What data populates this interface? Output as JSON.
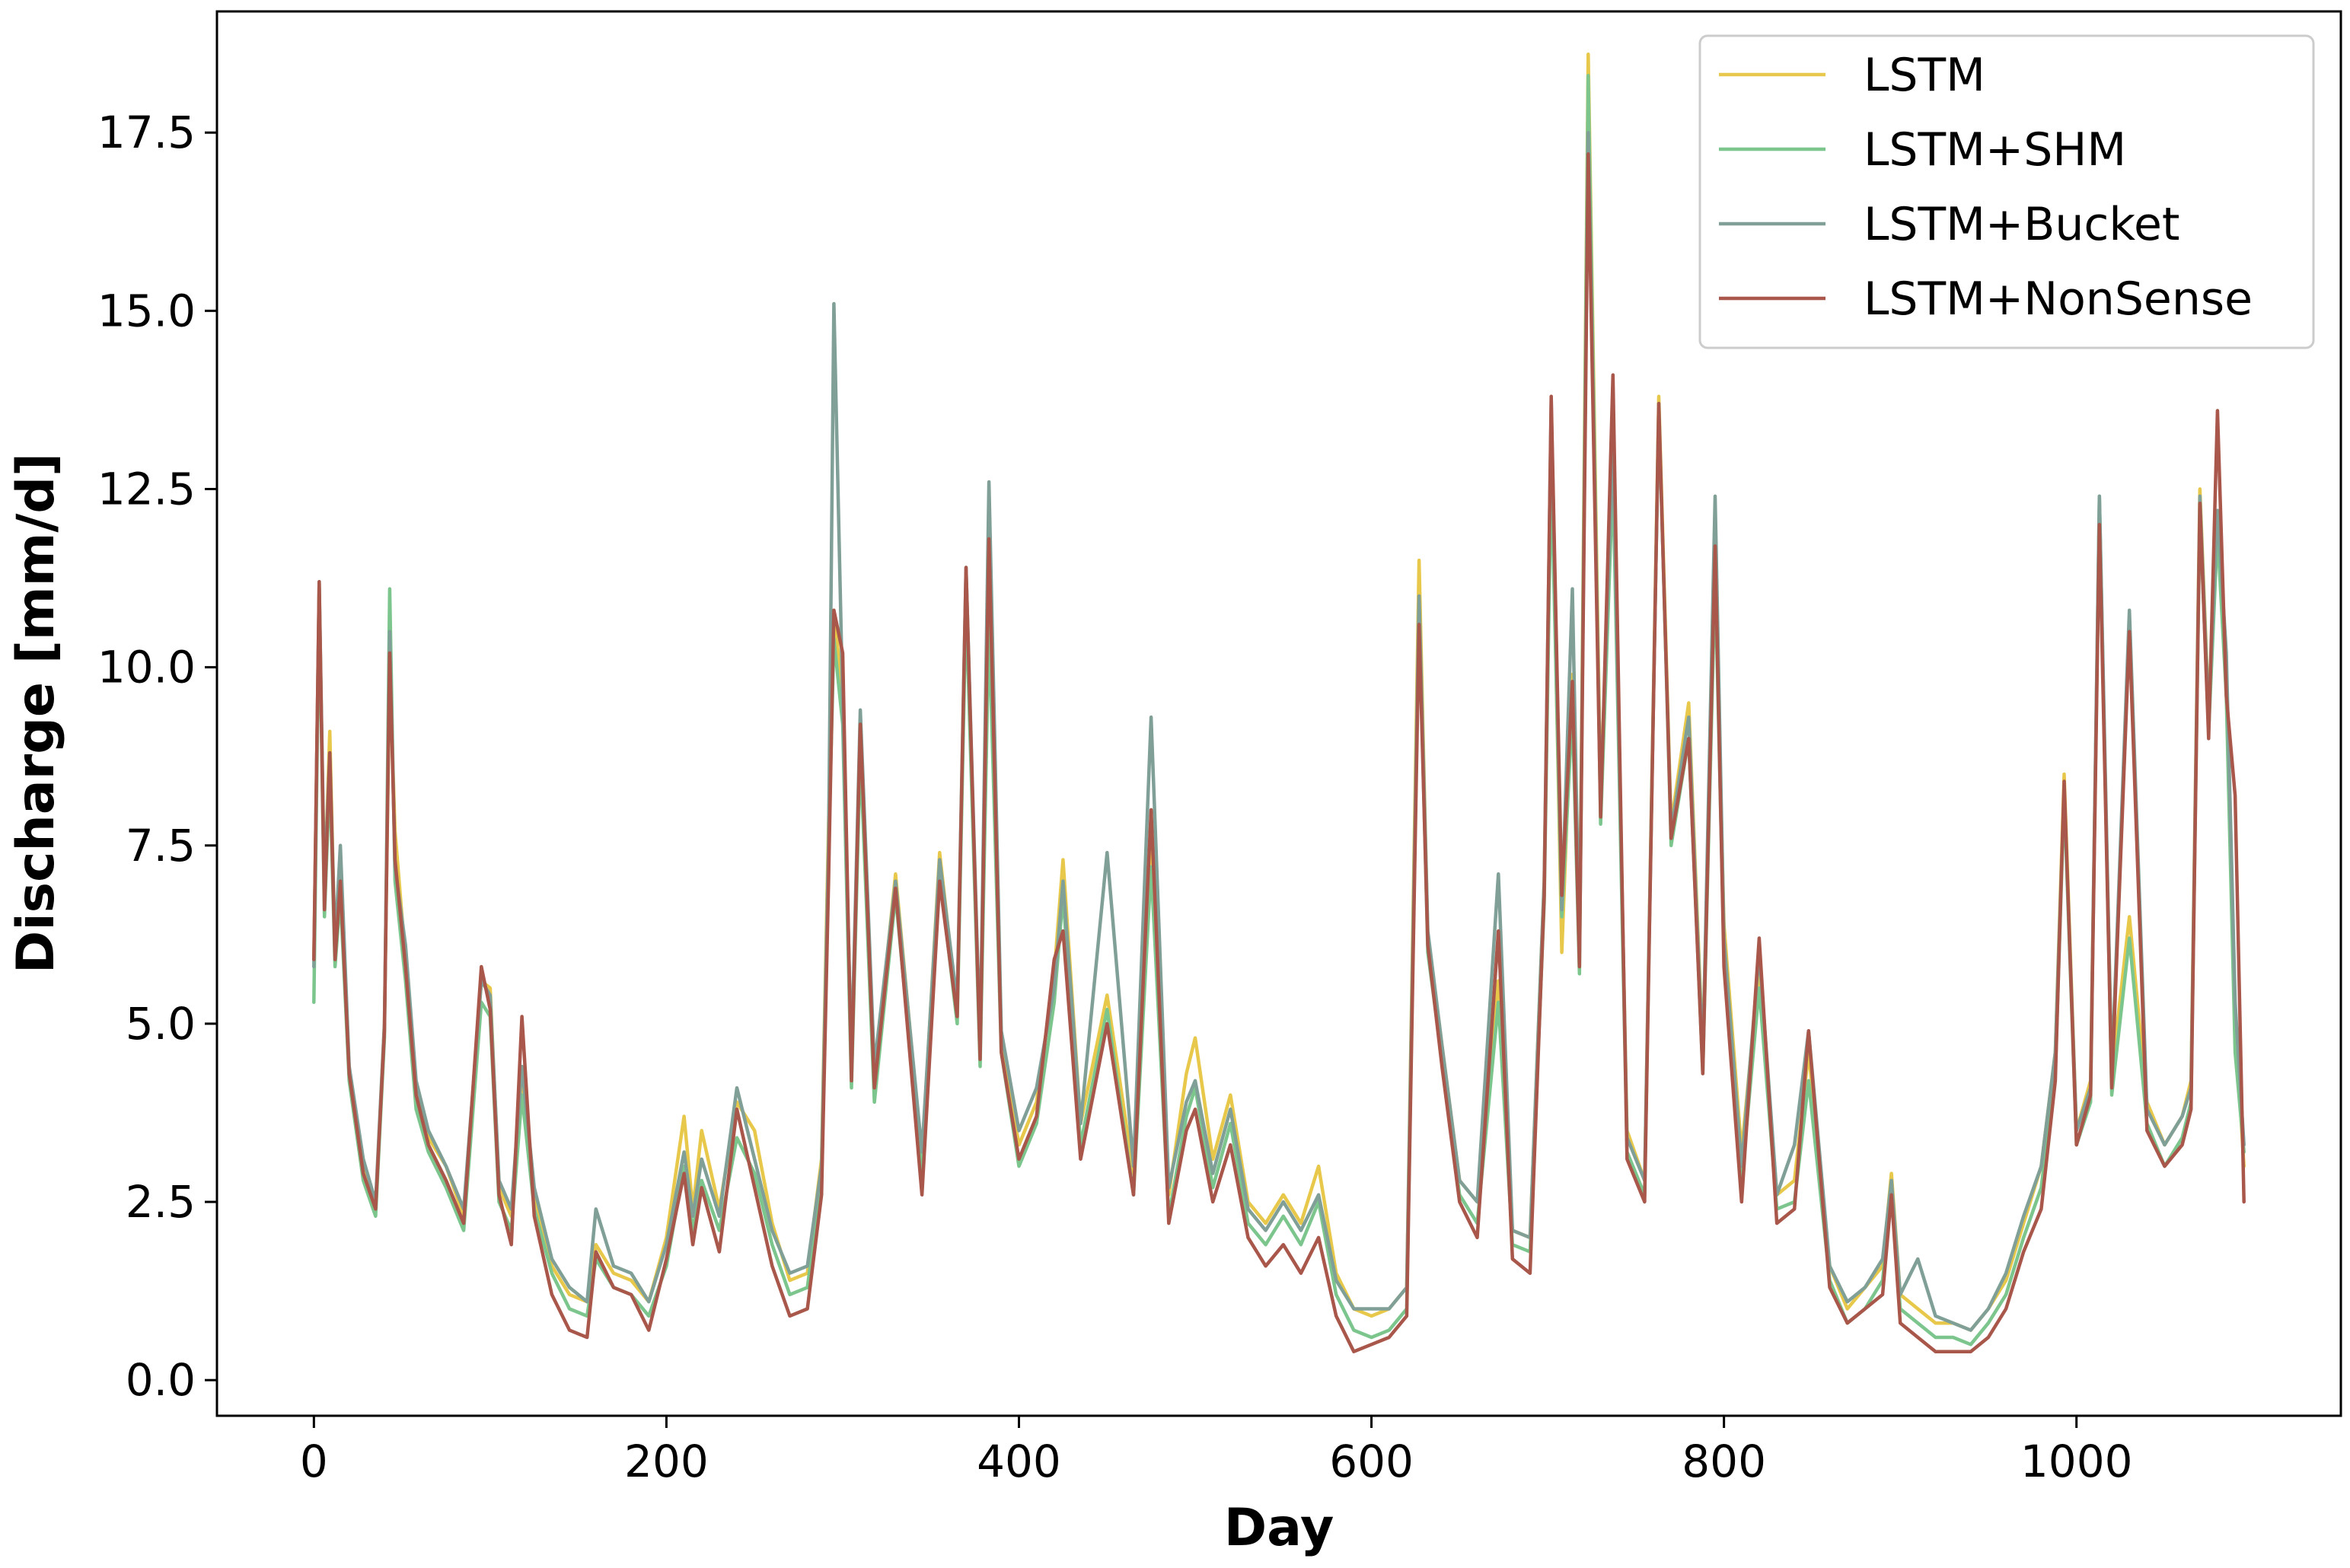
{
  "chart_data": {
    "type": "line",
    "xlabel": "Day",
    "ylabel": "Discharge [mm/d]",
    "xlim": [
      -55,
      1150
    ],
    "ylim": [
      -0.5,
      19.2
    ],
    "x_ticks": [
      0,
      200,
      400,
      600,
      800,
      1000
    ],
    "x_tick_labels": [
      "0",
      "200",
      "400",
      "600",
      "800",
      "1000"
    ],
    "y_ticks": [
      0.0,
      2.5,
      5.0,
      7.5,
      10.0,
      12.5,
      15.0,
      17.5
    ],
    "y_tick_labels": [
      "0.0",
      "2.5",
      "5.0",
      "7.5",
      "10.0",
      "12.5",
      "15.0",
      "17.5"
    ],
    "grid": false,
    "legend_position": "top-right",
    "series": [
      {
        "name": "LSTM",
        "color": "#e8c84a",
        "x": [
          0,
          3,
          6,
          9,
          12,
          15,
          20,
          28,
          35,
          40,
          43,
          46,
          52,
          58,
          65,
          75,
          85,
          95,
          100,
          105,
          112,
          118,
          125,
          135,
          145,
          155,
          160,
          170,
          180,
          190,
          200,
          210,
          215,
          220,
          230,
          240,
          250,
          260,
          270,
          280,
          288,
          292,
          295,
          300,
          305,
          310,
          318,
          330,
          345,
          355,
          365,
          370,
          378,
          383,
          390,
          400,
          410,
          420,
          425,
          435,
          450,
          465,
          475,
          485,
          495,
          500,
          510,
          520,
          530,
          540,
          550,
          560,
          570,
          580,
          590,
          600,
          610,
          620,
          627,
          632,
          640,
          650,
          660,
          672,
          680,
          690,
          698,
          702,
          708,
          714,
          718,
          723,
          730,
          737,
          745,
          755,
          763,
          770,
          780,
          788,
          795,
          800,
          810,
          820,
          830,
          840,
          848,
          860,
          870,
          880,
          890,
          895,
          900,
          910,
          920,
          930,
          940,
          950,
          960,
          970,
          980,
          988,
          993,
          1000,
          1008,
          1013,
          1020,
          1030,
          1040,
          1050,
          1060,
          1065,
          1070,
          1075,
          1080,
          1085,
          1090,
          1095
        ],
        "values": [
          5.9,
          11.1,
          6.8,
          9.1,
          6.0,
          6.9,
          4.3,
          3.0,
          2.4,
          5.0,
          10.0,
          7.7,
          5.9,
          4.0,
          3.4,
          3.0,
          2.3,
          5.6,
          5.5,
          2.7,
          2.3,
          4.2,
          2.6,
          1.6,
          1.2,
          1.1,
          1.9,
          1.5,
          1.4,
          1.1,
          2.0,
          3.7,
          2.4,
          3.5,
          2.4,
          3.9,
          3.5,
          2.2,
          1.4,
          1.5,
          3.1,
          7.8,
          10.8,
          9.6,
          4.4,
          9.2,
          4.2,
          7.1,
          3.1,
          7.4,
          5.2,
          11.2,
          4.6,
          10.9,
          4.8,
          3.3,
          3.9,
          5.7,
          7.3,
          3.6,
          5.4,
          2.9,
          7.5,
          2.6,
          4.3,
          4.8,
          3.1,
          4.0,
          2.5,
          2.2,
          2.6,
          2.2,
          3.0,
          1.5,
          1.0,
          0.9,
          1.0,
          1.3,
          11.5,
          6.2,
          4.7,
          2.8,
          2.5,
          5.6,
          2.1,
          2.0,
          7.0,
          13.3,
          6.0,
          9.9,
          6.0,
          18.6,
          8.2,
          13.0,
          3.5,
          2.8,
          13.8,
          7.8,
          9.5,
          4.6,
          11.5,
          6.4,
          3.2,
          5.8,
          2.6,
          2.8,
          4.6,
          1.6,
          1.0,
          1.3,
          1.6,
          2.9,
          1.2,
          1.0,
          0.8,
          0.8,
          0.7,
          1.0,
          1.4,
          2.2,
          3.0,
          4.6,
          8.5,
          3.5,
          4.2,
          12.1,
          4.3,
          6.5,
          3.9,
          3.3,
          3.7,
          4.2,
          12.5,
          9.4,
          12.1,
          9.9,
          5.0,
          3.0
        ]
      },
      {
        "name": "LSTM+SHM",
        "color": "#7cc68e",
        "x": [
          0,
          3,
          6,
          9,
          12,
          15,
          20,
          28,
          35,
          40,
          43,
          46,
          52,
          58,
          65,
          75,
          85,
          95,
          100,
          105,
          112,
          118,
          125,
          135,
          145,
          155,
          160,
          170,
          180,
          190,
          200,
          210,
          215,
          220,
          230,
          240,
          250,
          260,
          270,
          280,
          288,
          292,
          295,
          300,
          305,
          310,
          318,
          330,
          345,
          355,
          365,
          370,
          378,
          383,
          390,
          400,
          410,
          420,
          425,
          435,
          450,
          465,
          475,
          485,
          495,
          500,
          510,
          520,
          530,
          540,
          550,
          560,
          570,
          580,
          590,
          600,
          610,
          620,
          627,
          632,
          640,
          650,
          660,
          672,
          680,
          690,
          698,
          702,
          708,
          714,
          718,
          723,
          730,
          737,
          745,
          755,
          763,
          770,
          780,
          788,
          795,
          800,
          810,
          820,
          830,
          840,
          848,
          860,
          870,
          880,
          890,
          895,
          900,
          910,
          920,
          930,
          940,
          950,
          960,
          970,
          980,
          988,
          993,
          1000,
          1008,
          1013,
          1020,
          1030,
          1040,
          1050,
          1060,
          1065,
          1070,
          1075,
          1080,
          1085,
          1090,
          1095
        ],
        "values": [
          5.3,
          11.0,
          6.5,
          8.5,
          5.8,
          6.8,
          4.2,
          2.8,
          2.3,
          4.8,
          11.1,
          7.0,
          5.6,
          3.8,
          3.2,
          2.7,
          2.1,
          5.3,
          5.1,
          2.5,
          2.1,
          4.0,
          2.4,
          1.5,
          1.0,
          0.9,
          1.7,
          1.3,
          1.2,
          0.9,
          1.6,
          3.0,
          2.1,
          2.8,
          2.1,
          3.4,
          2.9,
          1.9,
          1.2,
          1.3,
          2.8,
          7.4,
          10.4,
          9.2,
          4.1,
          8.8,
          3.9,
          6.8,
          2.9,
          7.1,
          5.0,
          10.9,
          4.4,
          10.6,
          4.6,
          3.0,
          3.6,
          5.3,
          6.8,
          3.3,
          5.2,
          2.6,
          7.2,
          2.3,
          3.7,
          4.1,
          2.7,
          3.6,
          2.2,
          1.9,
          2.3,
          1.9,
          2.5,
          1.2,
          0.7,
          0.6,
          0.7,
          1.0,
          10.8,
          6.0,
          4.5,
          2.6,
          2.2,
          5.3,
          1.9,
          1.8,
          6.7,
          12.8,
          6.5,
          9.4,
          5.7,
          18.3,
          7.8,
          12.7,
          3.2,
          2.6,
          13.7,
          7.5,
          9.0,
          4.3,
          11.3,
          6.0,
          2.8,
          5.5,
          2.4,
          2.5,
          4.2,
          1.4,
          0.8,
          1.0,
          1.4,
          2.6,
          1.0,
          0.8,
          0.6,
          0.6,
          0.5,
          0.8,
          1.2,
          2.0,
          2.7,
          4.3,
          8.2,
          3.3,
          3.9,
          12.4,
          4.0,
          6.2,
          3.6,
          3.0,
          3.4,
          3.9,
          12.2,
          9.1,
          11.9,
          9.6,
          4.6,
          3.2
        ]
      },
      {
        "name": "LSTM+Bucket",
        "color": "#7f9f97",
        "x": [
          0,
          3,
          6,
          9,
          12,
          15,
          20,
          28,
          35,
          40,
          43,
          46,
          52,
          58,
          65,
          75,
          85,
          95,
          100,
          105,
          112,
          118,
          125,
          135,
          145,
          155,
          160,
          170,
          180,
          190,
          200,
          210,
          215,
          220,
          230,
          240,
          250,
          260,
          270,
          280,
          288,
          292,
          295,
          300,
          305,
          310,
          318,
          330,
          345,
          355,
          365,
          370,
          378,
          383,
          390,
          400,
          410,
          420,
          425,
          435,
          450,
          465,
          475,
          485,
          495,
          500,
          510,
          520,
          530,
          540,
          550,
          560,
          570,
          580,
          590,
          600,
          610,
          620,
          627,
          632,
          640,
          650,
          660,
          672,
          680,
          690,
          698,
          702,
          708,
          714,
          718,
          723,
          730,
          737,
          745,
          755,
          763,
          770,
          780,
          788,
          795,
          800,
          810,
          820,
          830,
          840,
          848,
          860,
          870,
          880,
          890,
          895,
          900,
          910,
          920,
          930,
          940,
          950,
          960,
          970,
          980,
          988,
          993,
          1000,
          1008,
          1013,
          1020,
          1030,
          1040,
          1050,
          1060,
          1065,
          1070,
          1075,
          1080,
          1085,
          1090,
          1095
        ],
        "values": [
          5.8,
          11.2,
          6.9,
          8.8,
          6.1,
          7.5,
          4.4,
          3.1,
          2.5,
          5.0,
          10.5,
          7.2,
          6.1,
          4.2,
          3.5,
          3.0,
          2.4,
          5.6,
          5.4,
          2.8,
          2.4,
          4.4,
          2.7,
          1.7,
          1.3,
          1.1,
          2.4,
          1.6,
          1.5,
          1.1,
          1.9,
          3.2,
          2.3,
          3.1,
          2.3,
          4.1,
          3.1,
          2.1,
          1.5,
          1.6,
          3.0,
          7.5,
          15.1,
          9.5,
          4.5,
          9.4,
          4.4,
          7.0,
          3.2,
          7.3,
          5.3,
          11.4,
          4.7,
          12.6,
          4.9,
          3.5,
          4.1,
          5.5,
          7.0,
          3.6,
          7.4,
          3.0,
          9.3,
          2.7,
          3.9,
          4.2,
          2.9,
          3.8,
          2.4,
          2.1,
          2.5,
          2.1,
          2.6,
          1.4,
          1.0,
          1.0,
          1.0,
          1.3,
          11.0,
          6.3,
          4.7,
          2.8,
          2.5,
          7.1,
          2.1,
          2.0,
          7.0,
          13.7,
          6.6,
          11.1,
          6.0,
          17.5,
          8.1,
          13.2,
          3.4,
          2.8,
          13.6,
          7.7,
          9.3,
          4.5,
          12.4,
          6.2,
          3.0,
          6.0,
          2.6,
          3.3,
          4.9,
          1.6,
          1.1,
          1.3,
          1.7,
          2.8,
          1.2,
          1.7,
          0.9,
          0.8,
          0.7,
          1.0,
          1.5,
          2.3,
          3.0,
          4.6,
          8.3,
          3.5,
          4.1,
          12.4,
          4.3,
          10.8,
          3.8,
          3.3,
          3.7,
          4.1,
          12.4,
          9.3,
          12.2,
          10.2,
          5.3,
          3.3
        ]
      },
      {
        "name": "LSTM+NonSense",
        "color": "#a8574a",
        "x": [
          0,
          3,
          6,
          9,
          12,
          15,
          20,
          28,
          35,
          40,
          43,
          46,
          52,
          58,
          65,
          75,
          85,
          95,
          100,
          105,
          112,
          118,
          125,
          135,
          145,
          155,
          160,
          170,
          180,
          190,
          200,
          210,
          215,
          220,
          230,
          240,
          250,
          260,
          270,
          280,
          288,
          292,
          295,
          300,
          305,
          310,
          318,
          330,
          345,
          355,
          365,
          370,
          378,
          383,
          390,
          400,
          410,
          420,
          425,
          435,
          450,
          465,
          475,
          485,
          495,
          500,
          510,
          520,
          530,
          540,
          550,
          560,
          570,
          580,
          590,
          600,
          610,
          620,
          627,
          632,
          640,
          650,
          660,
          672,
          680,
          690,
          698,
          702,
          708,
          714,
          718,
          723,
          730,
          737,
          745,
          755,
          763,
          770,
          780,
          788,
          795,
          800,
          810,
          820,
          830,
          840,
          848,
          860,
          870,
          880,
          890,
          895,
          900,
          910,
          920,
          930,
          940,
          950,
          960,
          970,
          980,
          988,
          993,
          1000,
          1008,
          1013,
          1020,
          1030,
          1040,
          1050,
          1060,
          1065,
          1070,
          1075,
          1080,
          1085,
          1090,
          1095
        ],
        "values": [
          5.9,
          11.2,
          6.6,
          8.8,
          5.9,
          7.0,
          4.3,
          2.9,
          2.4,
          4.9,
          10.2,
          7.3,
          5.8,
          4.0,
          3.3,
          2.8,
          2.2,
          5.8,
          5.2,
          2.6,
          1.9,
          5.1,
          2.3,
          1.2,
          0.7,
          0.6,
          1.8,
          1.3,
          1.2,
          0.7,
          1.7,
          2.9,
          1.9,
          2.7,
          1.8,
          3.8,
          2.7,
          1.6,
          0.9,
          1.0,
          2.6,
          7.0,
          10.8,
          10.2,
          4.2,
          9.2,
          4.1,
          6.9,
          2.6,
          7.0,
          5.1,
          11.4,
          4.5,
          11.8,
          4.6,
          3.1,
          3.7,
          5.9,
          6.3,
          3.1,
          5.0,
          2.6,
          8.0,
          2.2,
          3.5,
          3.8,
          2.5,
          3.3,
          2.0,
          1.6,
          1.9,
          1.5,
          2.0,
          0.9,
          0.4,
          0.5,
          0.6,
          0.9,
          10.6,
          6.1,
          4.4,
          2.5,
          2.0,
          6.3,
          1.7,
          1.5,
          6.8,
          13.8,
          6.8,
          9.8,
          5.8,
          17.2,
          7.9,
          14.1,
          3.1,
          2.5,
          13.7,
          7.6,
          9.0,
          4.3,
          11.7,
          5.8,
          2.5,
          6.2,
          2.2,
          2.4,
          4.9,
          1.3,
          0.8,
          1.0,
          1.2,
          2.6,
          0.8,
          0.6,
          0.4,
          0.4,
          0.4,
          0.6,
          1.0,
          1.8,
          2.4,
          4.2,
          8.4,
          3.3,
          4.0,
          12.0,
          4.1,
          10.5,
          3.5,
          3.0,
          3.3,
          3.8,
          12.3,
          9.0,
          13.6,
          9.6,
          8.2,
          2.5
        ]
      }
    ]
  }
}
